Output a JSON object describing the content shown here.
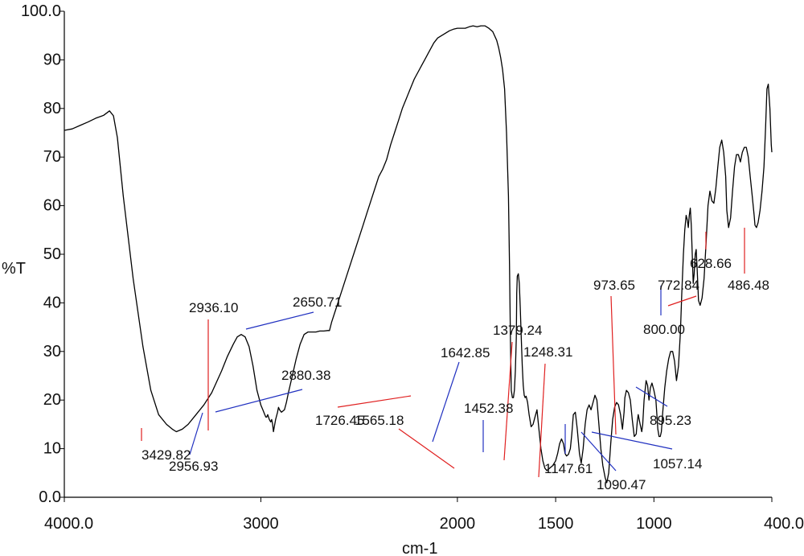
{
  "chart_data": {
    "type": "line",
    "xlabel": "cm-1",
    "ylabel": "%T",
    "xlim": [
      4000,
      400
    ],
    "ylim": [
      0,
      100
    ],
    "x_reversed": true,
    "x_ticks": [
      {
        "value": 4000,
        "label": "4000.0"
      },
      {
        "value": 3000,
        "label": "3000"
      },
      {
        "value": 2000,
        "label": "2000"
      },
      {
        "value": 1500,
        "label": "1500"
      },
      {
        "value": 1000,
        "label": "1000"
      },
      {
        "value": 400,
        "label": "400.0"
      }
    ],
    "y_ticks": [
      {
        "value": 0,
        "label": "0.0"
      },
      {
        "value": 10,
        "label": "10"
      },
      {
        "value": 20,
        "label": "20"
      },
      {
        "value": 30,
        "label": "30"
      },
      {
        "value": 40,
        "label": "40"
      },
      {
        "value": 50,
        "label": "50"
      },
      {
        "value": 60,
        "label": "60"
      },
      {
        "value": 70,
        "label": "70"
      },
      {
        "value": 80,
        "label": "80"
      },
      {
        "value": 90,
        "label": "90"
      },
      {
        "value": 100,
        "label": "100.0"
      }
    ],
    "grid": false,
    "colors": {
      "trace": "#000000",
      "red_leader": "#e02020",
      "blue_leader": "#2030c0"
    },
    "series": [
      {
        "x": [
          4000,
          3960,
          3920,
          3880,
          3840,
          3800,
          3770,
          3750,
          3730,
          3700,
          3650,
          3600,
          3560,
          3520,
          3480,
          3450,
          3430,
          3400,
          3370,
          3330,
          3290,
          3250,
          3200,
          3170,
          3140,
          3120,
          3100,
          3080,
          3060,
          3040,
          3020,
          3000,
          2990,
          2980,
          2975,
          2970,
          2965,
          2957,
          2950,
          2945,
          2940,
          2936,
          2925,
          2915,
          2910,
          2905,
          2895,
          2880,
          2870,
          2860,
          2840,
          2820,
          2800,
          2780,
          2760,
          2740,
          2720,
          2700,
          2680,
          2660,
          2651,
          2640,
          2620,
          2600,
          2580,
          2560,
          2540,
          2520,
          2500,
          2480,
          2460,
          2440,
          2420,
          2400,
          2380,
          2360,
          2340,
          2320,
          2300,
          2280,
          2260,
          2240,
          2220,
          2200,
          2180,
          2160,
          2140,
          2120,
          2100,
          2080,
          2060,
          2040,
          2020,
          2000,
          1980,
          1960,
          1940,
          1920,
          1900,
          1880,
          1860,
          1840,
          1820,
          1800,
          1790,
          1780,
          1770,
          1760,
          1750,
          1740,
          1735,
          1730,
          1726,
          1720,
          1715,
          1710,
          1705,
          1700,
          1698,
          1695,
          1690,
          1685,
          1680,
          1675,
          1670,
          1665,
          1660,
          1655,
          1650,
          1643,
          1635,
          1625,
          1615,
          1605,
          1595,
          1585,
          1575,
          1565,
          1555,
          1545,
          1530,
          1515,
          1500,
          1490,
          1480,
          1470,
          1460,
          1452,
          1445,
          1435,
          1425,
          1418,
          1410,
          1400,
          1390,
          1379,
          1370,
          1360,
          1350,
          1340,
          1330,
          1320,
          1310,
          1300,
          1290,
          1280,
          1270,
          1260,
          1248,
          1240,
          1230,
          1220,
          1210,
          1200,
          1190,
          1180,
          1170,
          1160,
          1152,
          1148,
          1140,
          1130,
          1120,
          1110,
          1100,
          1090,
          1085,
          1080,
          1070,
          1062,
          1057,
          1050,
          1040,
          1032,
          1025,
          1018,
          1010,
          1000,
          990,
          985,
          980,
          974,
          968,
          962,
          955,
          945,
          935,
          925,
          915,
          905,
          895,
          885,
          875,
          865,
          858,
          850,
          843,
          836,
          830,
          825,
          820,
          815,
          810,
          805,
          800,
          795,
          790,
          785,
          780,
          773,
          765,
          755,
          745,
          735,
          725,
          715,
          705,
          695,
          685,
          675,
          665,
          655,
          645,
          635,
          629,
          620,
          610,
          600,
          590,
          580,
          570,
          560,
          550,
          540,
          530,
          520,
          510,
          500,
          490,
          486,
          478,
          470,
          460,
          450,
          440,
          432,
          425,
          418,
          410,
          403,
          400
        ],
        "y": [
          75.5,
          75.8,
          76.5,
          77.2,
          78.0,
          78.6,
          79.5,
          78.5,
          74,
          62,
          45,
          31,
          22,
          17,
          15,
          14,
          13.5,
          14,
          15,
          17,
          19,
          21.5,
          26,
          29,
          31.5,
          33,
          33.5,
          33,
          31,
          27,
          22,
          19,
          18,
          17,
          16.5,
          16.5,
          17,
          16,
          15.5,
          16,
          15,
          13.5,
          16,
          17.5,
          18.5,
          18,
          17.5,
          18,
          19.5,
          21.5,
          25,
          28.5,
          31.5,
          33.5,
          34,
          34,
          34,
          34.2,
          34.2,
          34.3,
          34.3,
          36,
          38.5,
          41,
          43.5,
          46,
          48.5,
          51,
          53.5,
          56,
          58.5,
          61,
          63.5,
          66,
          67.5,
          69.5,
          72.5,
          75,
          77.5,
          80,
          82,
          84,
          86,
          87.5,
          89,
          90.5,
          92,
          93.5,
          94.5,
          95,
          95.5,
          96,
          96.3,
          96.5,
          96.5,
          96.5,
          96.8,
          97,
          96.8,
          97,
          97,
          96.5,
          95.8,
          94,
          92.5,
          90.5,
          88,
          84,
          75,
          62,
          48,
          32,
          22,
          20.5,
          20.5,
          22,
          26,
          33,
          42,
          45.5,
          46,
          44,
          39,
          33,
          27,
          23,
          21,
          20.5,
          20.8,
          19.5,
          17,
          14.5,
          15,
          16.5,
          18,
          14,
          10,
          7.5,
          6,
          5.5,
          6,
          6.5,
          7.5,
          9,
          11,
          12,
          11,
          9,
          8.5,
          8.8,
          10,
          13,
          17,
          17.5,
          14,
          9,
          7,
          10,
          15,
          18,
          19,
          18,
          19.5,
          21,
          20,
          15,
          10,
          6.5,
          4,
          3,
          5,
          11,
          16,
          18.5,
          19.5,
          19,
          17,
          14,
          17.5,
          20.5,
          22,
          21.5,
          20,
          16,
          12.5,
          13,
          15.5,
          17,
          15,
          13.5,
          15,
          20,
          24,
          23,
          20,
          22.5,
          23.5,
          22,
          20,
          17,
          14,
          12.5,
          12.5,
          13.5,
          17.5,
          22.5,
          26,
          28.5,
          30,
          30,
          28,
          24,
          27,
          34,
          42,
          50,
          55,
          58,
          57,
          55.5,
          58,
          59.5,
          56,
          50,
          44,
          46,
          50,
          51,
          47,
          40.5,
          39.5,
          41,
          45,
          52,
          60,
          63,
          61,
          60.5,
          63.5,
          68,
          72,
          73.5,
          71,
          66,
          59,
          55.5,
          57.5,
          63,
          68,
          70.5,
          70.5,
          69,
          71,
          72,
          72,
          70,
          66,
          62,
          58,
          56,
          55.5,
          56.5,
          59,
          63,
          68,
          76,
          84,
          85,
          80,
          72.5,
          71
        ]
      }
    ],
    "peak_labels": [
      {
        "text": "3429.82",
        "color": "red"
      },
      {
        "text": "2956.93",
        "color": "blue"
      },
      {
        "text": "2936.10",
        "color": "red"
      },
      {
        "text": "2880.38",
        "color": "blue"
      },
      {
        "text": "2650.71",
        "color": "blue"
      },
      {
        "text": "1726.45",
        "color": "red"
      },
      {
        "text": "1565.18",
        "color": "red"
      },
      {
        "text": "1642.85",
        "color": "blue"
      },
      {
        "text": "1452.38",
        "color": "blue"
      },
      {
        "text": "1379.24",
        "color": "red"
      },
      {
        "text": "1248.31",
        "color": "red"
      },
      {
        "text": "1147.61",
        "color": "blue"
      },
      {
        "text": "1090.47",
        "color": "blue"
      },
      {
        "text": "1057.14",
        "color": "blue"
      },
      {
        "text": "973.65",
        "color": "red"
      },
      {
        "text": "895.23",
        "color": "blue"
      },
      {
        "text": "800.00",
        "color": "blue"
      },
      {
        "text": "772.84",
        "color": "red"
      },
      {
        "text": "628.66",
        "color": "red"
      },
      {
        "text": "486.48",
        "color": "red"
      }
    ]
  }
}
